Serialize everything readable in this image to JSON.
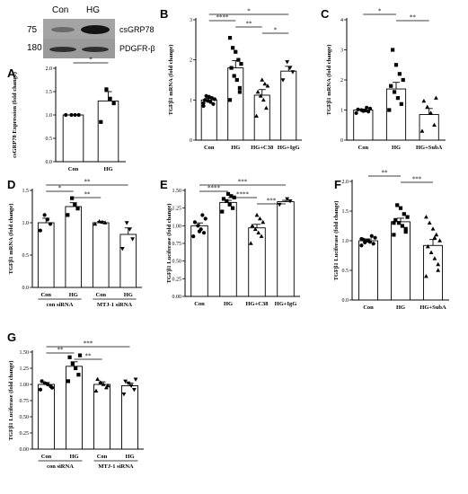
{
  "blot": {
    "lane_labels": [
      "Con",
      "HG"
    ],
    "rows": [
      {
        "mw": "75",
        "protein": "csGRP78"
      },
      {
        "mw": "180",
        "protein": "PDGFR-β"
      }
    ]
  },
  "chart_data": [
    {
      "id": "A",
      "type": "bar",
      "ylabel": "csGRP78 Expression (fold change)",
      "ylim": [
        0,
        2.0
      ],
      "yticks": [
        0,
        0.5,
        1.0,
        1.5,
        2.0
      ],
      "categories": [
        "Con",
        "HG"
      ],
      "values": [
        1.0,
        1.3
      ],
      "errors": [
        0.0,
        0.2
      ],
      "points": [
        [
          1.0,
          1.0,
          1.0,
          1.0
        ],
        [
          0.85,
          1.25,
          1.35,
          1.55
        ]
      ],
      "markers": [
        "circle",
        "square"
      ],
      "sig": [
        {
          "from": 0,
          "to": 1,
          "label": "*"
        }
      ]
    },
    {
      "id": "B",
      "type": "bar",
      "ylabel": "TGFβ1 mRNA (fold change)",
      "ylim": [
        0,
        3
      ],
      "yticks": [
        0,
        1,
        2,
        3
      ],
      "categories": [
        "Con",
        "HG",
        "HG+C38",
        "HG+IgG"
      ],
      "values": [
        1.0,
        1.8,
        1.12,
        1.72
      ],
      "errors": [
        0.04,
        0.18,
        0.14,
        0.12
      ],
      "points": [
        [
          0.85,
          0.9,
          0.95,
          0.98,
          1.0,
          1.02,
          1.05,
          1.08,
          1.1,
          0.92
        ],
        [
          1.0,
          1.3,
          1.5,
          1.6,
          1.8,
          1.9,
          2.0,
          2.2,
          2.3,
          2.55,
          1.2
        ],
        [
          0.6,
          0.8,
          1.0,
          1.1,
          1.2,
          1.35,
          1.4,
          1.5
        ],
        [
          1.5,
          1.7,
          1.8,
          1.95
        ]
      ],
      "markers": [
        "circle",
        "square",
        "triangle",
        "triangle-down"
      ],
      "sig": [
        {
          "from": 0,
          "to": 3,
          "label": "*"
        },
        {
          "from": 0,
          "to": 1,
          "label": "****"
        },
        {
          "from": 1,
          "to": 2,
          "label": "**"
        },
        {
          "from": 2,
          "to": 3,
          "label": "*"
        }
      ]
    },
    {
      "id": "C",
      "type": "bar",
      "ylabel": "TGFβ1 mRNA (fold change)",
      "ylim": [
        0,
        4
      ],
      "yticks": [
        0,
        1,
        2,
        3,
        4
      ],
      "categories": [
        "Con",
        "HG",
        "HG+SubA"
      ],
      "values": [
        1.0,
        1.7,
        0.85
      ],
      "errors": [
        0.03,
        0.22,
        0.2
      ],
      "points": [
        [
          0.9,
          0.95,
          0.98,
          1.0,
          1.02,
          1.05,
          1.08,
          0.97
        ],
        [
          1.0,
          1.2,
          1.4,
          1.6,
          1.8,
          2.0,
          2.2,
          2.5,
          3.0
        ],
        [
          0.3,
          0.5,
          0.9,
          1.1,
          1.3,
          1.4
        ]
      ],
      "markers": [
        "circle",
        "square",
        "triangle"
      ],
      "sig": [
        {
          "from": 0,
          "to": 1,
          "label": "*"
        },
        {
          "from": 1,
          "to": 2,
          "label": "**"
        }
      ]
    },
    {
      "id": "D",
      "type": "bar",
      "ylabel": "TGFβ1 mRNA (fold change)",
      "ylim": [
        0,
        1.5
      ],
      "yticks": [
        0,
        0.5,
        1.0,
        1.5
      ],
      "categories": [
        "Con",
        "HG",
        "Con",
        "HG"
      ],
      "groups": [
        {
          "label": "con siRNA",
          "span": [
            0,
            1
          ]
        },
        {
          "label": "MTJ-1 siRNA",
          "span": [
            2,
            3
          ]
        }
      ],
      "values": [
        1.0,
        1.25,
        1.0,
        0.82
      ],
      "errors": [
        0.07,
        0.06,
        0.02,
        0.1
      ],
      "points": [
        [
          0.88,
          0.98,
          1.05,
          1.12
        ],
        [
          1.12,
          1.22,
          1.28,
          1.38
        ],
        [
          0.98,
          1.0,
          1.01,
          1.02
        ],
        [
          0.6,
          0.75,
          0.9,
          1.0
        ]
      ],
      "markers": [
        "circle",
        "square",
        "triangle",
        "triangle-down"
      ],
      "sig": [
        {
          "from": 0,
          "to": 1,
          "label": "*"
        },
        {
          "from": 0,
          "to": 3,
          "label": "**"
        },
        {
          "from": 1,
          "to": 2,
          "label": "**"
        }
      ]
    },
    {
      "id": "E",
      "type": "bar",
      "ylabel": "TGFβ1 Luciferase (fold change)",
      "ylim": [
        0,
        1.5
      ],
      "yticks": [
        0,
        0.25,
        0.5,
        0.75,
        1.0,
        1.25,
        1.5
      ],
      "categories": [
        "Con",
        "HG",
        "HG+C38",
        "HG+IgG"
      ],
      "values": [
        1.0,
        1.33,
        0.97,
        1.34
      ],
      "errors": [
        0.04,
        0.03,
        0.05,
        0.02
      ],
      "points": [
        [
          0.85,
          0.9,
          0.95,
          1.0,
          1.05,
          1.1,
          1.15,
          0.92
        ],
        [
          1.2,
          1.25,
          1.3,
          1.35,
          1.38,
          1.4,
          1.42,
          1.45
        ],
        [
          0.75,
          0.85,
          0.9,
          0.95,
          1.0,
          1.05,
          1.1,
          1.15
        ],
        [
          1.3,
          1.35,
          1.38
        ]
      ],
      "markers": [
        "circle",
        "square",
        "triangle",
        "triangle-down"
      ],
      "sig": [
        {
          "from": 0,
          "to": 1,
          "label": "****"
        },
        {
          "from": 0,
          "to": 3,
          "label": "***"
        },
        {
          "from": 1,
          "to": 2,
          "label": "****"
        },
        {
          "from": 2,
          "to": 3,
          "label": "***"
        }
      ]
    },
    {
      "id": "F",
      "type": "bar",
      "ylabel": "TGFβ1 Luciferase (fold change)",
      "ylim": [
        0,
        2.0
      ],
      "yticks": [
        0,
        0.5,
        1.0,
        1.5,
        2.0
      ],
      "categories": [
        "Con",
        "HG",
        "HG+SubA"
      ],
      "values": [
        1.0,
        1.32,
        0.92
      ],
      "errors": [
        0.03,
        0.06,
        0.1
      ],
      "points": [
        [
          0.92,
          0.95,
          0.98,
          1.0,
          1.02,
          1.05,
          1.08,
          1.0,
          0.97,
          1.03
        ],
        [
          1.1,
          1.2,
          1.25,
          1.3,
          1.35,
          1.4,
          1.45,
          1.55,
          1.6,
          1.3,
          1.15
        ],
        [
          0.4,
          0.6,
          0.7,
          0.8,
          0.9,
          1.0,
          1.1,
          1.2,
          1.3,
          1.4,
          0.5,
          1.05
        ]
      ],
      "markers": [
        "circle",
        "square",
        "triangle"
      ],
      "sig": [
        {
          "from": 0,
          "to": 1,
          "label": "**"
        },
        {
          "from": 1,
          "to": 2,
          "label": "***"
        }
      ]
    },
    {
      "id": "G",
      "type": "bar",
      "ylabel": "TGFβ1 Luciferase (fold change)",
      "ylim": [
        0,
        1.5
      ],
      "yticks": [
        0,
        0.25,
        0.5,
        0.75,
        1.0,
        1.25,
        1.5
      ],
      "categories": [
        "Con",
        "HG",
        "Con",
        "HG"
      ],
      "groups": [
        {
          "label": "con siRNA",
          "span": [
            0,
            1
          ]
        },
        {
          "label": "MTJ-1 siRNA",
          "span": [
            2,
            3
          ]
        }
      ],
      "values": [
        1.0,
        1.28,
        1.0,
        0.98
      ],
      "errors": [
        0.03,
        0.07,
        0.04,
        0.04
      ],
      "points": [
        [
          0.92,
          0.97,
          1.0,
          1.02,
          1.05,
          0.95
        ],
        [
          1.05,
          1.15,
          1.25,
          1.32,
          1.42,
          1.45
        ],
        [
          0.9,
          0.95,
          1.0,
          1.03,
          1.08,
          0.98
        ],
        [
          0.85,
          0.92,
          0.98,
          1.02,
          1.05,
          1.08
        ]
      ],
      "markers": [
        "circle",
        "square",
        "triangle",
        "triangle-down"
      ],
      "sig": [
        {
          "from": 0,
          "to": 1,
          "label": "**"
        },
        {
          "from": 0,
          "to": 3,
          "label": "***"
        },
        {
          "from": 1,
          "to": 2,
          "label": "**"
        }
      ]
    }
  ]
}
